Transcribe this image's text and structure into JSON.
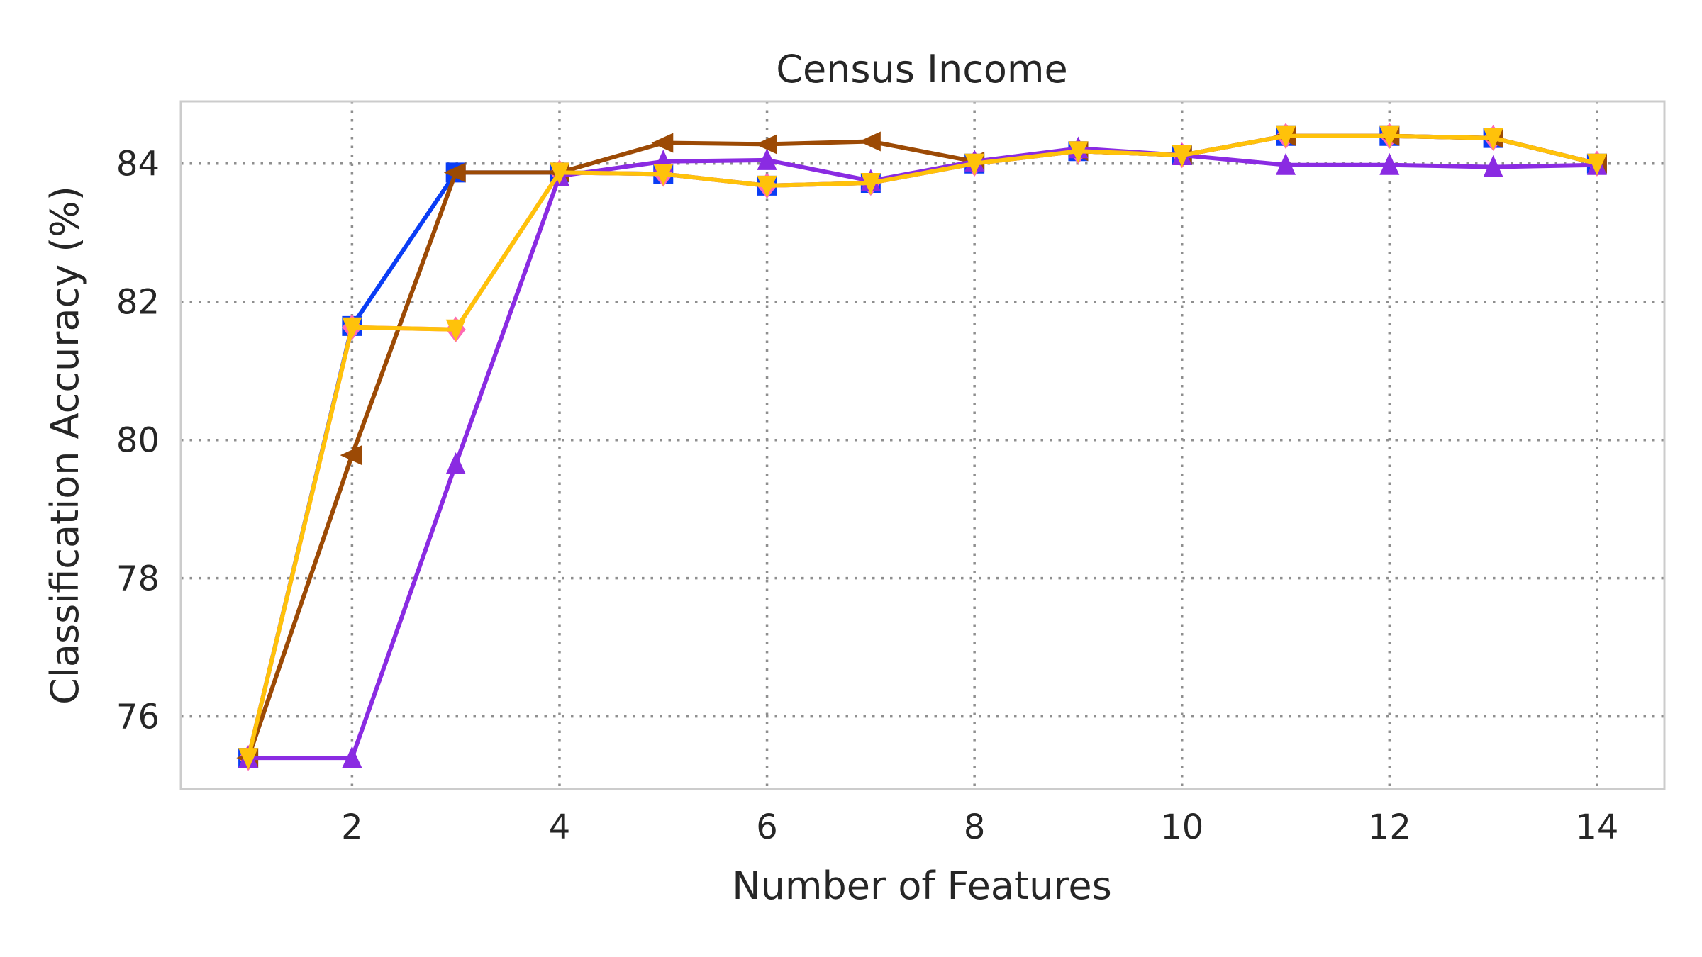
{
  "chart_data": {
    "type": "line",
    "title": "Census Income",
    "xlabel": "Number of Features",
    "ylabel": "Classification Accuracy (%)",
    "xlim": [
      0.35,
      14.65
    ],
    "ylim": [
      74.95,
      84.9
    ],
    "xticks": [
      2,
      4,
      6,
      8,
      10,
      12,
      14
    ],
    "yticks": [
      76,
      78,
      80,
      82,
      84
    ],
    "grid": true,
    "x": [
      1,
      2,
      3,
      4,
      5,
      6,
      7,
      8,
      9,
      10,
      11,
      12,
      13,
      14
    ],
    "series": [
      {
        "color": "#0a3df5",
        "marker": "square",
        "values": [
          75.4,
          81.65,
          83.87,
          83.87,
          83.85,
          83.68,
          83.72,
          84.0,
          84.18,
          84.12,
          84.4,
          84.4,
          84.37,
          84.0
        ]
      },
      {
        "color": "#ff69b4",
        "marker": "diamond",
        "values": [
          75.4,
          81.63,
          81.6,
          83.87,
          83.85,
          83.68,
          83.72,
          84.0,
          84.18,
          84.12,
          84.4,
          84.4,
          84.37,
          84.0
        ]
      },
      {
        "color": "#9c4a05",
        "marker": "triangle-left",
        "values": [
          75.4,
          79.78,
          83.87,
          83.87,
          84.3,
          84.28,
          84.32,
          84.03,
          84.18,
          84.12,
          84.4,
          84.4,
          84.37,
          84.0
        ]
      },
      {
        "color": "#8a2be2",
        "marker": "triangle-up",
        "values": [
          75.4,
          75.4,
          79.65,
          83.82,
          84.03,
          84.05,
          83.75,
          84.03,
          84.22,
          84.12,
          83.98,
          83.98,
          83.95,
          83.98
        ]
      },
      {
        "color": "#ffc20a",
        "marker": "triangle-down",
        "values": [
          75.4,
          81.63,
          81.6,
          83.87,
          83.85,
          83.68,
          83.72,
          84.0,
          84.18,
          84.12,
          84.4,
          84.4,
          84.37,
          84.0
        ]
      }
    ]
  }
}
